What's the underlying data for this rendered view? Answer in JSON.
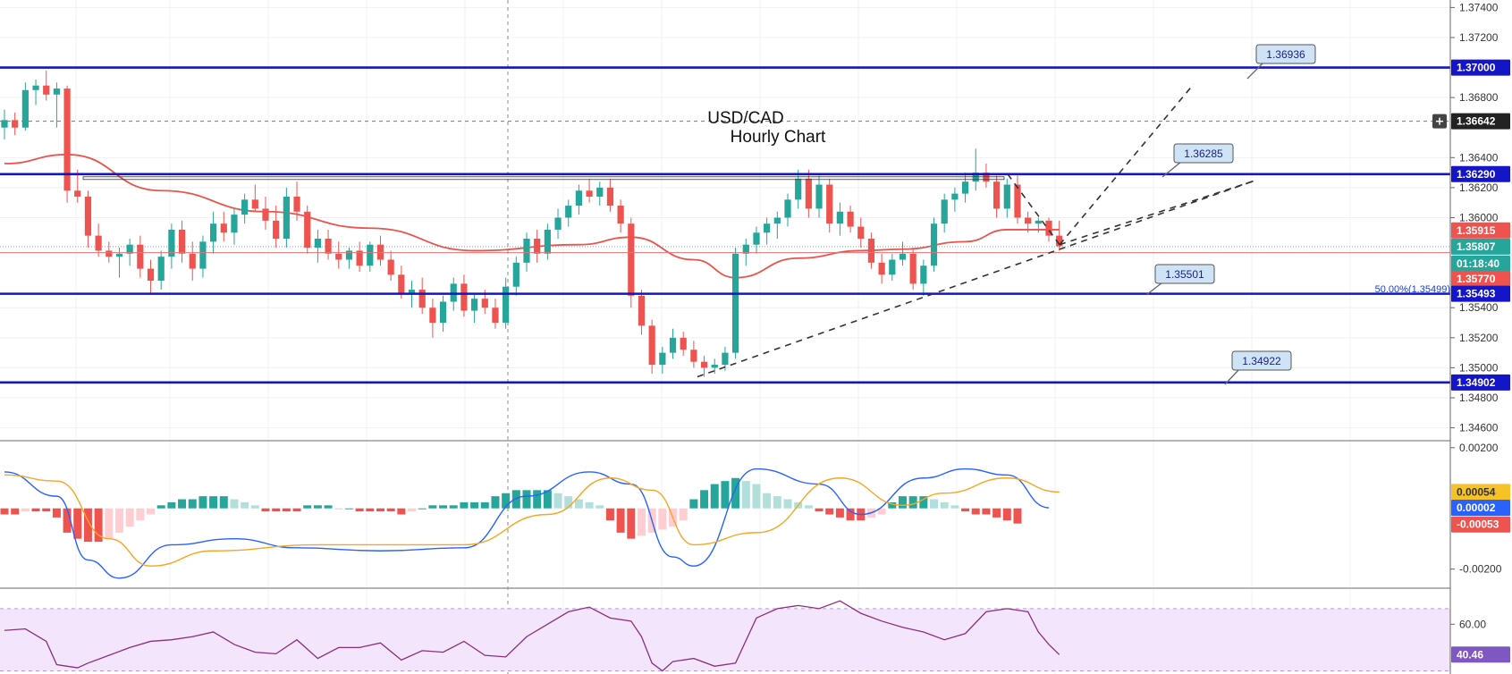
{
  "chart_data": [
    {
      "type": "candlestick",
      "title": "USD/CAD",
      "subtitle": "Hourly Chart",
      "ylim": [
        1.3452,
        1.3745
      ],
      "y_ticks": [
        "1.37400",
        "1.37200",
        "1.36800",
        "1.36400",
        "1.36200",
        "1.36000",
        "1.35400",
        "1.35200",
        "1.35000",
        "1.34800",
        "1.34600"
      ],
      "y_tick_values": [
        1.374,
        1.372,
        1.368,
        1.364,
        1.362,
        1.36,
        1.354,
        1.352,
        1.35,
        1.348,
        1.346
      ],
      "horizontal_levels": [
        1.37,
        1.3629,
        1.35493,
        1.34902
      ],
      "price_tags": [
        {
          "label": "1.37000",
          "value": 1.37,
          "color": "#1515c8",
          "kind": "level"
        },
        {
          "label": "1.36642",
          "value": 1.36642,
          "color": "#222222",
          "kind": "crosshair"
        },
        {
          "label": "1.36290",
          "value": 1.3629,
          "color": "#1515c8",
          "kind": "level"
        },
        {
          "label": "1.35915",
          "value": 1.35915,
          "color": "#ef5350",
          "kind": "ma"
        },
        {
          "label": "1.35807",
          "value": 1.35807,
          "color": "#26a69a",
          "kind": "last"
        },
        {
          "label": "01:18:40",
          "value": 1.3573,
          "color": "#26a69a",
          "kind": "timer"
        },
        {
          "label": "1.35770",
          "value": 1.3577,
          "color": "#ef5350",
          "kind": "ma2"
        },
        {
          "label": "1.35493",
          "value": 1.35493,
          "color": "#1515c8",
          "kind": "level"
        },
        {
          "label": "1.34902",
          "value": 1.34902,
          "color": "#1515c8",
          "kind": "level"
        }
      ],
      "callouts": [
        {
          "label": "1.36936",
          "value": 1.36936
        },
        {
          "label": "1.36285",
          "value": 1.36285
        },
        {
          "label": "1.35501",
          "value": 1.35501
        },
        {
          "label": "1.34922",
          "value": 1.34922
        }
      ],
      "fib_label": "50.00%(1.35499)",
      "crosshair_value": 1.36642,
      "candles": [
        [
          1.366,
          1.3672,
          1.3652,
          1.3665
        ],
        [
          1.3665,
          1.367,
          1.3655,
          1.366
        ],
        [
          1.366,
          1.369,
          1.3658,
          1.3685
        ],
        [
          1.3685,
          1.3692,
          1.3675,
          1.3688
        ],
        [
          1.3688,
          1.3698,
          1.3678,
          1.3682
        ],
        [
          1.3682,
          1.369,
          1.366,
          1.3686
        ],
        [
          1.3686,
          1.3688,
          1.361,
          1.3618
        ],
        [
          1.3618,
          1.3632,
          1.361,
          1.3614
        ],
        [
          1.3614,
          1.3618,
          1.358,
          1.3588
        ],
        [
          1.3588,
          1.3596,
          1.3574,
          1.3578
        ],
        [
          1.3578,
          1.3584,
          1.357,
          1.3574
        ],
        [
          1.3574,
          1.358,
          1.356,
          1.3576
        ],
        [
          1.3576,
          1.3586,
          1.3568,
          1.3582
        ],
        [
          1.3582,
          1.3588,
          1.356,
          1.3566
        ],
        [
          1.3566,
          1.3572,
          1.355,
          1.3558
        ],
        [
          1.3558,
          1.3578,
          1.3552,
          1.3574
        ],
        [
          1.3574,
          1.3596,
          1.3566,
          1.3592
        ],
        [
          1.3592,
          1.3598,
          1.357,
          1.3576
        ],
        [
          1.3576,
          1.3584,
          1.3558,
          1.3566
        ],
        [
          1.3566,
          1.3588,
          1.356,
          1.3584
        ],
        [
          1.3584,
          1.3604,
          1.3576,
          1.3596
        ],
        [
          1.3596,
          1.3604,
          1.3584,
          1.359
        ],
        [
          1.359,
          1.3606,
          1.3582,
          1.3602
        ],
        [
          1.3602,
          1.3616,
          1.3596,
          1.3612
        ],
        [
          1.3612,
          1.3622,
          1.3604,
          1.3606
        ],
        [
          1.3606,
          1.3614,
          1.3592,
          1.3598
        ],
        [
          1.3598,
          1.3608,
          1.358,
          1.3586
        ],
        [
          1.3586,
          1.362,
          1.358,
          1.3614
        ],
        [
          1.3614,
          1.3624,
          1.3598,
          1.3604
        ],
        [
          1.3604,
          1.3608,
          1.3576,
          1.358
        ],
        [
          1.358,
          1.3592,
          1.357,
          1.3586
        ],
        [
          1.3586,
          1.3592,
          1.3572,
          1.3576
        ],
        [
          1.3576,
          1.3584,
          1.3566,
          1.3572
        ],
        [
          1.3572,
          1.358,
          1.3566,
          1.3578
        ],
        [
          1.3578,
          1.3584,
          1.3564,
          1.3568
        ],
        [
          1.3568,
          1.3584,
          1.3564,
          1.3582
        ],
        [
          1.3582,
          1.3588,
          1.3568,
          1.3572
        ],
        [
          1.3572,
          1.3578,
          1.3558,
          1.3562
        ],
        [
          1.3562,
          1.3568,
          1.3546,
          1.355
        ],
        [
          1.355,
          1.3558,
          1.354,
          1.3552
        ],
        [
          1.3552,
          1.356,
          1.3536,
          1.354
        ],
        [
          1.354,
          1.3546,
          1.352,
          1.353
        ],
        [
          1.353,
          1.3548,
          1.3524,
          1.3544
        ],
        [
          1.3544,
          1.356,
          1.3538,
          1.3556
        ],
        [
          1.3556,
          1.3562,
          1.3534,
          1.3538
        ],
        [
          1.3538,
          1.355,
          1.353,
          1.3546
        ],
        [
          1.3546,
          1.3552,
          1.3536,
          1.354
        ],
        [
          1.354,
          1.3546,
          1.3526,
          1.353
        ],
        [
          1.353,
          1.356,
          1.3526,
          1.3554
        ],
        [
          1.3554,
          1.3574,
          1.3548,
          1.357
        ],
        [
          1.357,
          1.359,
          1.3564,
          1.3586
        ],
        [
          1.3586,
          1.3592,
          1.357,
          1.3576
        ],
        [
          1.3576,
          1.3596,
          1.3572,
          1.3592
        ],
        [
          1.3592,
          1.3606,
          1.3586,
          1.36
        ],
        [
          1.36,
          1.3612,
          1.3594,
          1.3608
        ],
        [
          1.3608,
          1.3622,
          1.3602,
          1.3618
        ],
        [
          1.3618,
          1.3626,
          1.361,
          1.3614
        ],
        [
          1.3614,
          1.3624,
          1.3608,
          1.362
        ],
        [
          1.362,
          1.3626,
          1.3604,
          1.3608
        ],
        [
          1.3608,
          1.3612,
          1.359,
          1.3596
        ],
        [
          1.3596,
          1.36,
          1.354,
          1.3548
        ],
        [
          1.3548,
          1.3552,
          1.3522,
          1.3528
        ],
        [
          1.3528,
          1.3532,
          1.3496,
          1.3502
        ],
        [
          1.3502,
          1.3514,
          1.3496,
          1.351
        ],
        [
          1.351,
          1.3526,
          1.3506,
          1.352
        ],
        [
          1.352,
          1.3524,
          1.3508,
          1.3512
        ],
        [
          1.3512,
          1.3518,
          1.35,
          1.3504
        ],
        [
          1.3504,
          1.3508,
          1.3494,
          1.35
        ],
        [
          1.35,
          1.3506,
          1.3496,
          1.3502
        ],
        [
          1.3502,
          1.3514,
          1.3498,
          1.351
        ],
        [
          1.351,
          1.358,
          1.3506,
          1.3576
        ],
        [
          1.3576,
          1.3586,
          1.3568,
          1.3582
        ],
        [
          1.3582,
          1.3594,
          1.3576,
          1.359
        ],
        [
          1.359,
          1.36,
          1.3582,
          1.3596
        ],
        [
          1.3596,
          1.3604,
          1.3586,
          1.36
        ],
        [
          1.36,
          1.3616,
          1.3594,
          1.3612
        ],
        [
          1.3612,
          1.3632,
          1.3606,
          1.3626
        ],
        [
          1.3626,
          1.3632,
          1.36,
          1.3606
        ],
        [
          1.3606,
          1.3628,
          1.36,
          1.3622
        ],
        [
          1.3622,
          1.3626,
          1.359,
          1.3596
        ],
        [
          1.3596,
          1.361,
          1.3588,
          1.3604
        ],
        [
          1.3604,
          1.3608,
          1.359,
          1.3594
        ],
        [
          1.3594,
          1.36,
          1.358,
          1.3586
        ],
        [
          1.3586,
          1.359,
          1.3566,
          1.357
        ],
        [
          1.357,
          1.3576,
          1.3556,
          1.3562
        ],
        [
          1.3562,
          1.3576,
          1.3558,
          1.3572
        ],
        [
          1.3572,
          1.3584,
          1.3568,
          1.3576
        ],
        [
          1.3576,
          1.358,
          1.3552,
          1.3556
        ],
        [
          1.3556,
          1.3572,
          1.3548,
          1.3568
        ],
        [
          1.3568,
          1.36,
          1.3564,
          1.3596
        ],
        [
          1.3596,
          1.3616,
          1.359,
          1.3612
        ],
        [
          1.3612,
          1.362,
          1.3604,
          1.3616
        ],
        [
          1.3616,
          1.363,
          1.361,
          1.3624
        ],
        [
          1.3624,
          1.3646,
          1.3618,
          1.363
        ],
        [
          1.363,
          1.3636,
          1.362,
          1.3624
        ],
        [
          1.3624,
          1.3628,
          1.36,
          1.3606
        ],
        [
          1.3606,
          1.3626,
          1.36,
          1.3622
        ],
        [
          1.3622,
          1.3628,
          1.3596,
          1.36
        ],
        [
          1.36,
          1.3604,
          1.359,
          1.3596
        ],
        [
          1.3596,
          1.36,
          1.359,
          1.3598
        ],
        [
          1.3598,
          1.36,
          1.3584,
          1.3588
        ],
        [
          1.3588,
          1.3598,
          1.3578,
          1.3581
        ]
      ],
      "ma_series": {
        "name": "MA",
        "color": "#e8554c",
        "x_index": [
          0,
          6,
          15,
          25,
          35,
          45,
          55,
          60,
          66,
          70,
          76,
          82,
          86,
          92,
          96,
          101
        ],
        "values": [
          1.3636,
          1.3642,
          1.3618,
          1.3604,
          1.3593,
          1.3578,
          1.3582,
          1.3587,
          1.3572,
          1.356,
          1.3573,
          1.3578,
          1.3579,
          1.3584,
          1.3592,
          1.3592
        ]
      }
    },
    {
      "type": "macd",
      "y_ticks": [
        "0.00200",
        "-0.00200"
      ],
      "y_tick_values": [
        0.002,
        -0.002
      ],
      "ylim": [
        -0.0026,
        0.0022
      ],
      "price_tags": [
        {
          "label": "0.00054",
          "value": 0.00054,
          "color": "#f7c227",
          "text_color": "#333333"
        },
        {
          "label": "0.00002",
          "value": 2e-05,
          "color": "#2962ff",
          "text_color": "#ffffff"
        },
        {
          "label": "-0.00053",
          "value": -0.00053,
          "color": "#ef5350",
          "text_color": "#ffffff"
        }
      ],
      "histogram": [
        -0.0002,
        -0.0002,
        -0.0001,
        -0.0001,
        -0.0001,
        -0.0003,
        -0.0008,
        -0.001,
        -0.0011,
        -0.0011,
        -0.001,
        -0.0008,
        -0.0006,
        -0.0004,
        -0.0002,
        0.0001,
        0.0002,
        0.0003,
        0.0003,
        0.0004,
        0.0004,
        0.0004,
        0.0003,
        0.0002,
        0.0001,
        -0.0001,
        -0.0001,
        -0.0001,
        -0.0001,
        0.0001,
        0.0001,
        0.0001,
        0.0,
        0.0,
        -0.0001,
        -0.0001,
        -0.0001,
        -0.0001,
        -0.0002,
        -0.0001,
        0.0,
        0.0001,
        0.0001,
        0.0001,
        0.0002,
        0.0002,
        0.0002,
        0.0004,
        0.0005,
        0.0006,
        0.0006,
        0.0006,
        0.0006,
        0.0005,
        0.0004,
        0.0003,
        0.0002,
        0.0001,
        -0.0004,
        -0.0008,
        -0.001,
        -0.0009,
        -0.0008,
        -0.0007,
        -0.0006,
        -0.0004,
        0.0003,
        0.0006,
        0.0008,
        0.0009,
        0.001,
        0.0009,
        0.0008,
        0.0005,
        0.0004,
        0.0003,
        0.0002,
        0.0001,
        -0.0001,
        -0.0002,
        -0.0003,
        -0.0004,
        -0.0004,
        -0.0003,
        -0.0002,
        0.0002,
        0.0004,
        0.0004,
        0.0004,
        0.0003,
        0.0002,
        0.0001,
        -0.0001,
        -0.0002,
        -0.0002,
        -0.0003,
        -0.0004,
        -0.0005
      ],
      "macd_line": {
        "color": "#2962ff",
        "x_index": [
          0,
          5,
          8,
          11,
          16,
          22,
          28,
          36,
          44,
          50,
          56,
          60,
          64,
          66,
          72,
          78,
          82,
          88,
          92,
          96,
          100
        ],
        "values": [
          0.0012,
          0.0004,
          -0.0017,
          -0.0023,
          -0.0012,
          -0.001,
          -0.0013,
          -0.0014,
          -0.0013,
          0.0004,
          0.0012,
          0.0008,
          -0.0016,
          -0.0019,
          0.0013,
          0.0008,
          -0.0002,
          0.001,
          0.0013,
          0.0011,
          2e-05
        ]
      },
      "signal_line": {
        "color": "#f5a623",
        "x_index": [
          0,
          5,
          10,
          14,
          20,
          30,
          44,
          52,
          58,
          62,
          66,
          72,
          80,
          86,
          90,
          96,
          101
        ],
        "values": [
          0.0011,
          0.0009,
          -0.001,
          -0.0019,
          -0.0014,
          -0.0012,
          -0.0012,
          -0.0002,
          0.001,
          0.0006,
          -0.0012,
          -0.0008,
          0.001,
          0.0001,
          0.0005,
          0.001,
          0.00054
        ]
      }
    },
    {
      "type": "line",
      "name": "RSI",
      "y_ticks": [
        "60.00"
      ],
      "y_tick_values": [
        60
      ],
      "ylim": [
        28,
        82
      ],
      "band": [
        30,
        70
      ],
      "price_tags": [
        {
          "label": "40.46",
          "value": 40.46,
          "color": "#7e57c2",
          "text_color": "#ffffff"
        }
      ],
      "color": "#8e2d7e",
      "x_index": [
        0,
        2,
        4,
        5,
        6,
        7,
        8,
        10,
        12,
        14,
        16,
        18,
        20,
        22,
        24,
        26,
        28,
        30,
        32,
        34,
        36,
        38,
        40,
        42,
        44,
        46,
        48,
        50,
        52,
        54,
        56,
        58,
        60,
        61,
        62,
        63,
        64,
        66,
        68,
        70,
        72,
        74,
        76,
        78,
        80,
        82,
        84,
        86,
        88,
        90,
        92,
        94,
        96,
        98,
        99,
        100,
        101
      ],
      "values": [
        56,
        57,
        49,
        34,
        33,
        32,
        35,
        40,
        45,
        49,
        50,
        52,
        55,
        47,
        42,
        41,
        50,
        38,
        45,
        45,
        48,
        37,
        43,
        42,
        49,
        40,
        39,
        52,
        60,
        68,
        71,
        64,
        62,
        52,
        35,
        30,
        36,
        38,
        33,
        35,
        64,
        70,
        72,
        70,
        75,
        67,
        62,
        58,
        55,
        50,
        54,
        68,
        70,
        68,
        55,
        47,
        40.46
      ]
    }
  ]
}
